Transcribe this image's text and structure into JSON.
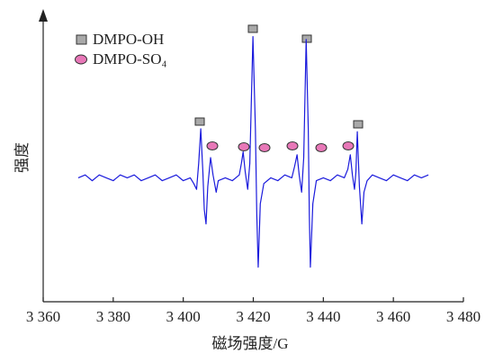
{
  "chart_data": {
    "type": "line",
    "xlabel": "磁场强度/G",
    "ylabel": "强度",
    "color": "#1a1adc",
    "xlim": [
      3360,
      3480
    ],
    "ylim": [
      0,
      100
    ],
    "xticks": [
      {
        "value": 3360,
        "label": "3 360"
      },
      {
        "value": 3380,
        "label": "3 380"
      },
      {
        "value": 3400,
        "label": "3 400"
      },
      {
        "value": 3420,
        "label": "3 420"
      },
      {
        "value": 3440,
        "label": "3 440"
      },
      {
        "value": 3460,
        "label": "3 460"
      },
      {
        "value": 3480,
        "label": "3 480"
      }
    ],
    "legend": [
      {
        "name": "DMPO-OH",
        "color": "#a9a9a9"
      },
      {
        "name": "DMPO-SO₄",
        "color": "#e878b8"
      }
    ],
    "x": [
      3370,
      3372,
      3374,
      3376,
      3378,
      3380,
      3382,
      3384,
      3386,
      3388,
      3390,
      3392,
      3394,
      3396,
      3398,
      3400,
      3402,
      3403,
      3403.8,
      3404.4,
      3405,
      3405.6,
      3406,
      3406.5,
      3407,
      3407.8,
      3408.5,
      3409.4,
      3410,
      3412,
      3414,
      3416,
      3416.6,
      3417.1,
      3417.7,
      3418.4,
      3419,
      3419.9,
      3420.6,
      3421,
      3421.4,
      3422,
      3423,
      3425,
      3427,
      3429,
      3431,
      3431.8,
      3432.5,
      3433.1,
      3433.8,
      3434.4,
      3435.1,
      3435.7,
      3436,
      3436.3,
      3437,
      3438,
      3440,
      3442,
      3444,
      3446,
      3447,
      3447.7,
      3448.3,
      3448.9,
      3449.3,
      3449.7,
      3450.3,
      3451,
      3451.6,
      3452.5,
      3454,
      3456,
      3458,
      3460,
      3462,
      3464,
      3466,
      3468,
      3470
    ],
    "values": [
      43,
      44,
      42,
      44,
      43,
      42,
      44,
      43,
      44,
      42,
      43,
      44,
      42,
      43,
      44,
      42,
      43,
      41,
      39,
      48,
      60,
      45,
      32,
      27,
      40,
      50,
      44,
      38,
      42,
      43,
      42,
      44,
      48,
      52,
      45,
      39,
      48,
      92,
      60,
      30,
      12,
      34,
      41,
      43,
      42,
      44,
      43,
      47,
      51,
      44,
      38,
      50,
      91,
      60,
      30,
      12,
      34,
      42,
      43,
      42,
      44,
      43,
      46,
      51,
      44,
      39,
      45,
      59,
      40,
      27,
      38,
      42,
      44,
      43,
      42,
      44,
      43,
      42,
      44,
      43,
      44
    ]
  }
}
